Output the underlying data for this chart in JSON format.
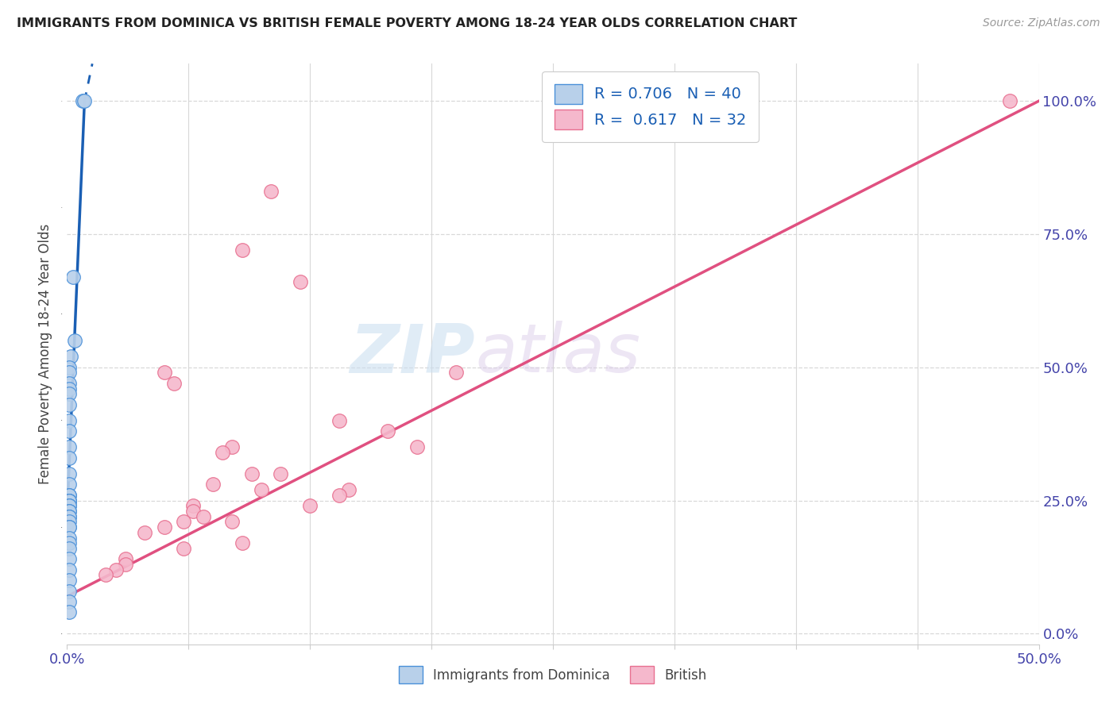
{
  "title": "IMMIGRANTS FROM DOMINICA VS BRITISH FEMALE POVERTY AMONG 18-24 YEAR OLDS CORRELATION CHART",
  "source": "Source: ZipAtlas.com",
  "ylabel": "Female Poverty Among 18-24 Year Olds",
  "xlim": [
    0.0,
    0.5
  ],
  "ylim": [
    -0.02,
    1.07
  ],
  "ytick_vals": [
    0.0,
    0.25,
    0.5,
    0.75,
    1.0
  ],
  "right_yticklabels": [
    "0.0%",
    "25.0%",
    "50.0%",
    "75.0%",
    "100.0%"
  ],
  "xtick_positions": [
    0.0,
    0.0625,
    0.125,
    0.1875,
    0.25,
    0.3125,
    0.375,
    0.4375,
    0.5
  ],
  "xticklabels": [
    "0.0%",
    "",
    "",
    "",
    "",
    "",
    "",
    "",
    "50.0%"
  ],
  "blue_R": 0.706,
  "blue_N": 40,
  "pink_R": 0.617,
  "pink_N": 32,
  "blue_color": "#b8d0ea",
  "blue_edge_color": "#4a90d9",
  "blue_line_color": "#1a5fb4",
  "pink_color": "#f5b8cc",
  "pink_edge_color": "#e87090",
  "pink_line_color": "#e05080",
  "watermark_zip": "ZIP",
  "watermark_atlas": "atlas",
  "background_color": "#ffffff",
  "grid_color": "#d8d8d8",
  "blue_scatter_x": [
    0.008,
    0.009,
    0.003,
    0.004,
    0.002,
    0.001,
    0.001,
    0.001,
    0.001,
    0.001,
    0.001,
    0.001,
    0.001,
    0.001,
    0.001,
    0.001,
    0.001,
    0.001,
    0.001,
    0.001,
    0.001,
    0.001,
    0.001,
    0.001,
    0.001,
    0.001,
    0.001,
    0.001,
    0.001,
    0.001,
    0.001,
    0.001,
    0.001,
    0.001,
    0.001,
    0.001,
    0.001,
    0.001,
    0.001,
    0.001
  ],
  "blue_scatter_y": [
    1.0,
    1.0,
    0.67,
    0.55,
    0.52,
    0.5,
    0.49,
    0.47,
    0.46,
    0.45,
    0.43,
    0.4,
    0.38,
    0.35,
    0.33,
    0.3,
    0.28,
    0.26,
    0.26,
    0.25,
    0.25,
    0.25,
    0.24,
    0.24,
    0.23,
    0.23,
    0.22,
    0.22,
    0.21,
    0.2,
    0.2,
    0.18,
    0.17,
    0.16,
    0.14,
    0.12,
    0.1,
    0.08,
    0.06,
    0.04
  ],
  "pink_scatter_x": [
    0.485,
    0.105,
    0.09,
    0.12,
    0.05,
    0.055,
    0.2,
    0.14,
    0.165,
    0.18,
    0.085,
    0.08,
    0.095,
    0.11,
    0.075,
    0.1,
    0.145,
    0.14,
    0.065,
    0.065,
    0.07,
    0.085,
    0.06,
    0.125,
    0.05,
    0.04,
    0.09,
    0.06,
    0.03,
    0.03,
    0.025,
    0.02
  ],
  "pink_scatter_y": [
    1.0,
    0.83,
    0.72,
    0.66,
    0.49,
    0.47,
    0.49,
    0.4,
    0.38,
    0.35,
    0.35,
    0.34,
    0.3,
    0.3,
    0.28,
    0.27,
    0.27,
    0.26,
    0.24,
    0.23,
    0.22,
    0.21,
    0.21,
    0.24,
    0.2,
    0.19,
    0.17,
    0.16,
    0.14,
    0.13,
    0.12,
    0.11
  ],
  "blue_line_x0": 0.0,
  "blue_line_y0": 0.22,
  "blue_line_x1": 0.009,
  "blue_line_y1": 1.0,
  "blue_line_dash_x0": 0.009,
  "blue_line_dash_y0": 1.0,
  "blue_line_dash_x1": 0.013,
  "blue_line_dash_y1": 1.07,
  "pink_line_x0": 0.0,
  "pink_line_y0": 0.07,
  "pink_line_x1": 0.5,
  "pink_line_y1": 1.0
}
